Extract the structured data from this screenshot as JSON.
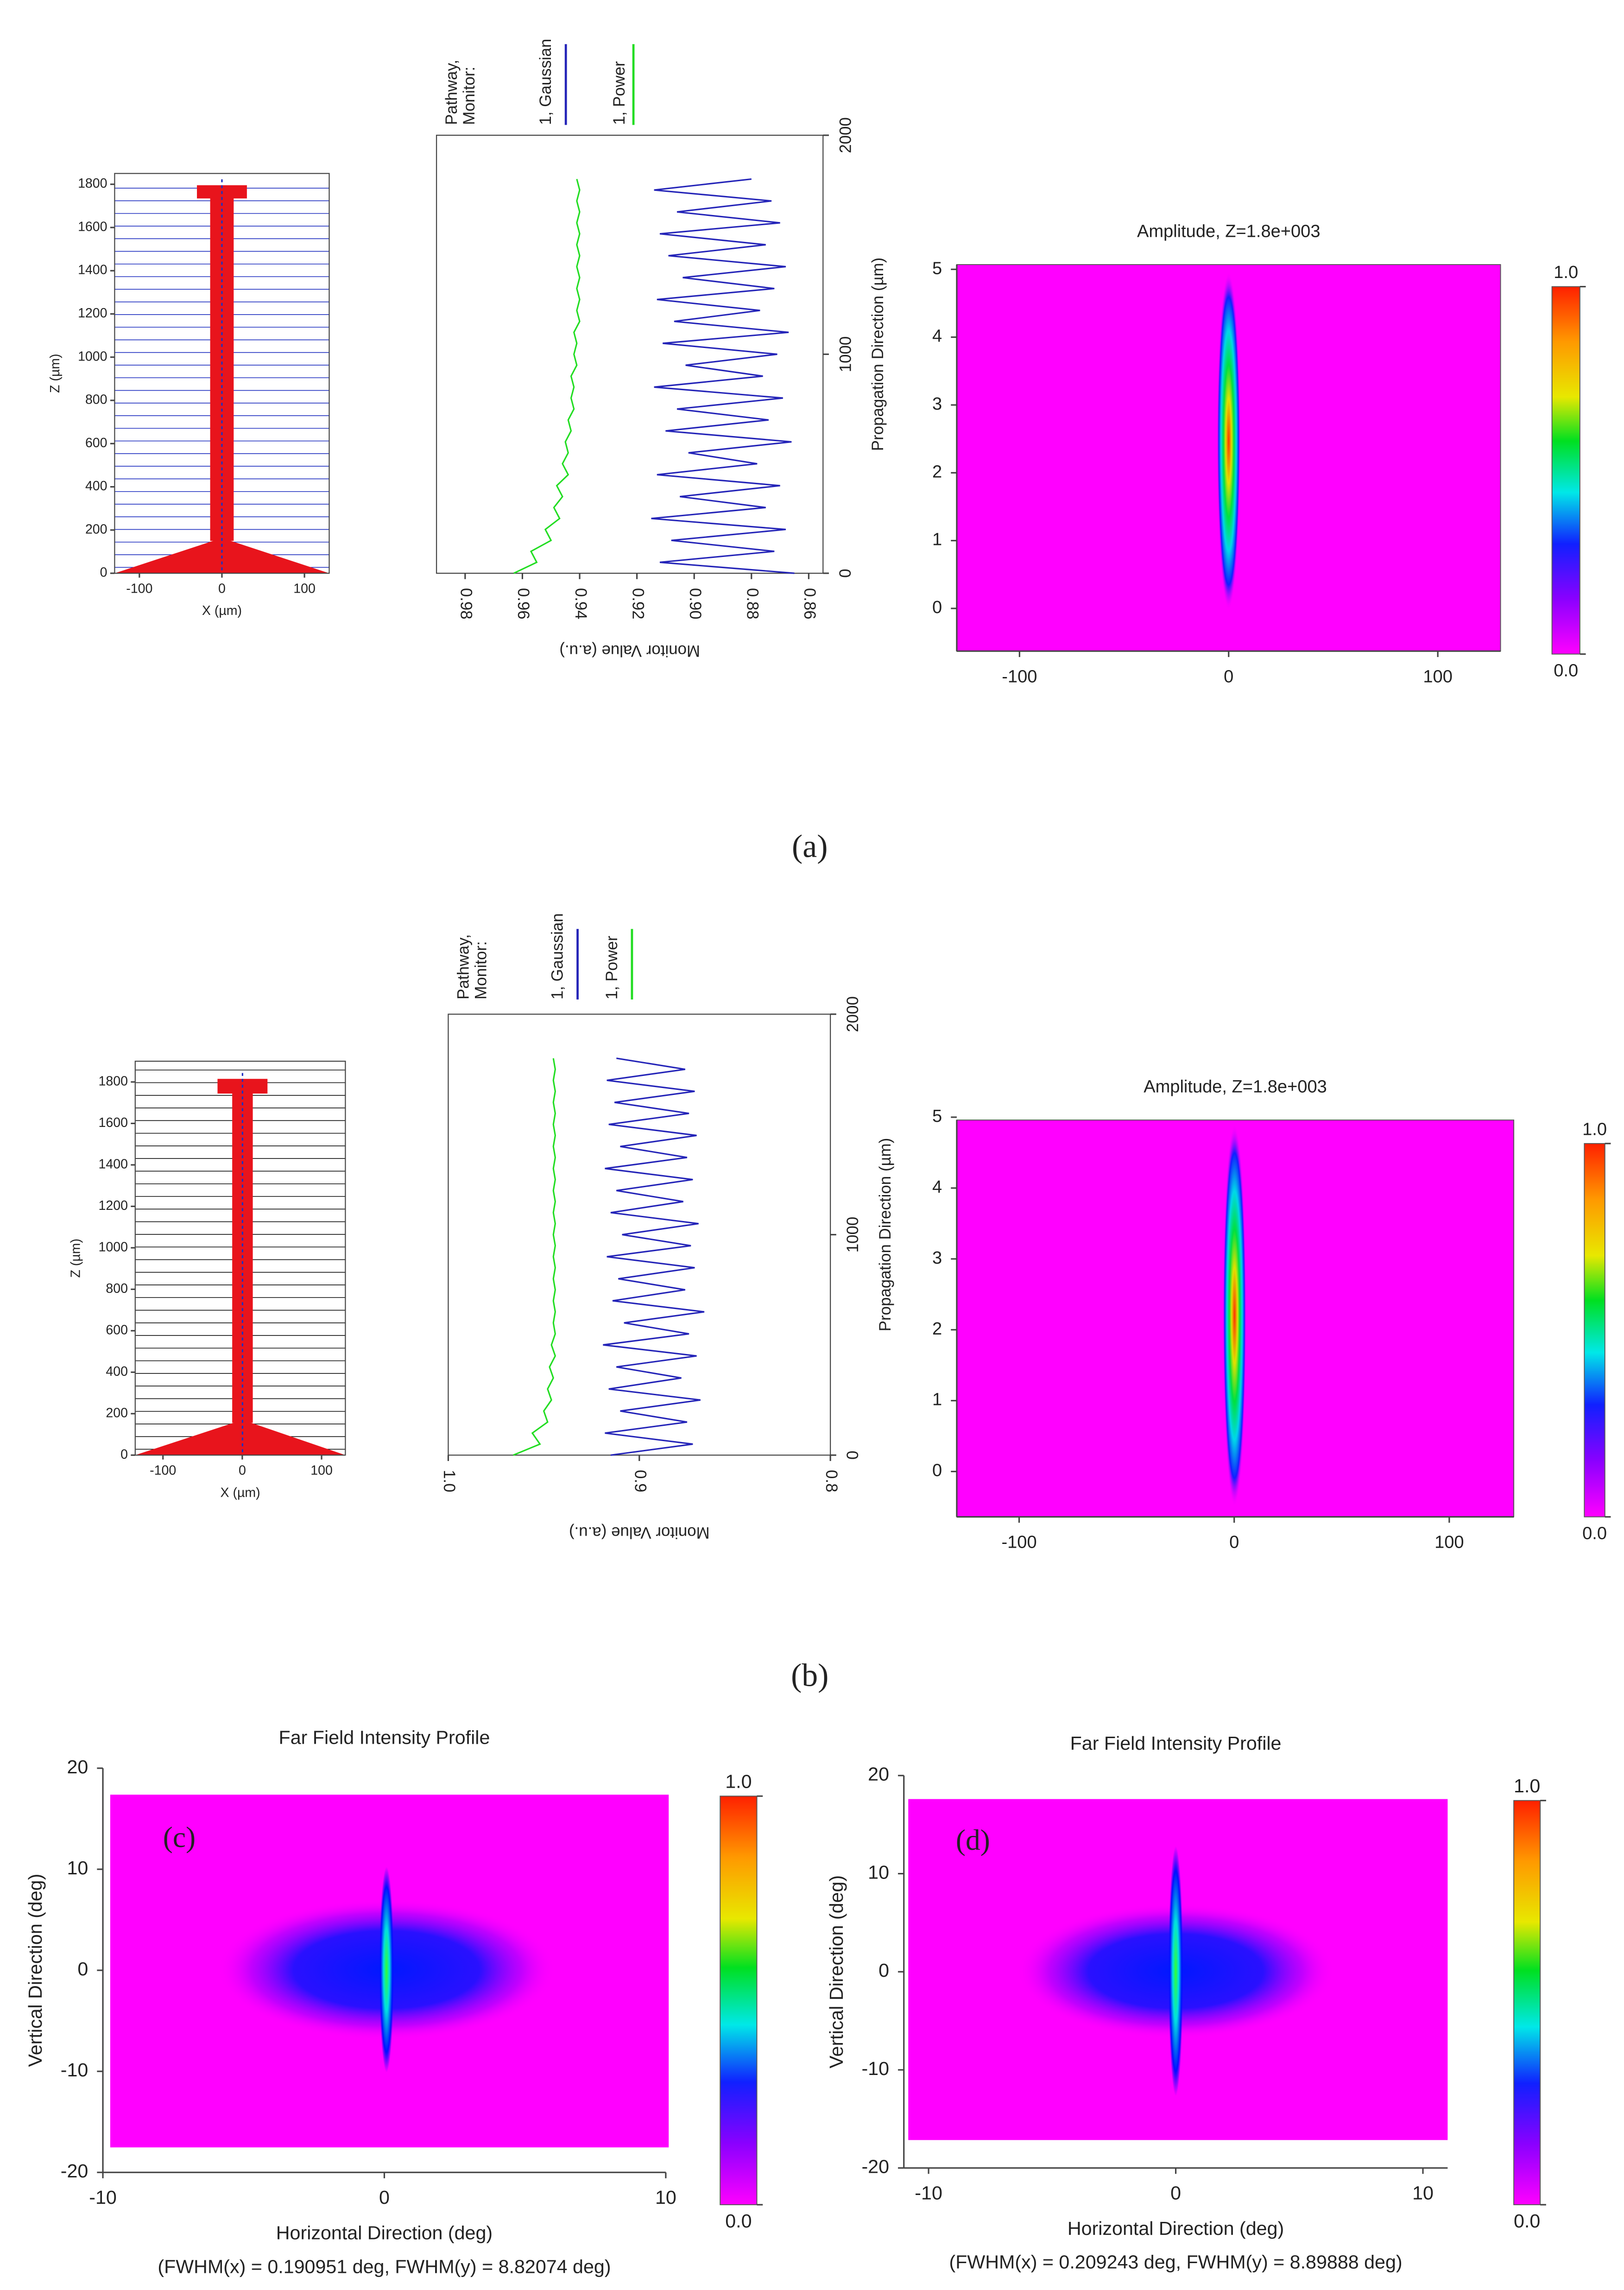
{
  "captions": [
    "(a)",
    "(b)"
  ],
  "chart_data": [
    {
      "type": "layout",
      "xlabel": "X (µm)",
      "ylabel": "Z (µm)",
      "xlim": [
        -130,
        130
      ],
      "ylim": [
        0,
        1850
      ],
      "xticks": [
        -100,
        0,
        100
      ],
      "yticks": [
        0,
        200,
        400,
        600,
        800,
        1000,
        1200,
        1400,
        1600,
        1800
      ]
    },
    {
      "type": "line",
      "legend_title": [
        "Pathway,",
        "Monitor:"
      ],
      "xlabel": "Monitor Value (a.u.)",
      "ylabel": "Propagation Direction (µm)",
      "xlim": [
        0.99,
        0.855
      ],
      "xticks": [
        0.98,
        0.96,
        0.94,
        0.92,
        {
          "value": 0.9,
          "label": "0.90"
        },
        0.88,
        0.86
      ],
      "ylim": [
        0,
        2000
      ],
      "yticks": [
        0,
        1000,
        2000
      ],
      "z": [
        0,
        50,
        100,
        150,
        200,
        250,
        300,
        350,
        400,
        450,
        500,
        550,
        600,
        650,
        700,
        750,
        800,
        850,
        900,
        950,
        1000,
        1050,
        1100,
        1150,
        1200,
        1250,
        1300,
        1350,
        1400,
        1450,
        1500,
        1550,
        1600,
        1650,
        1700,
        1750,
        1800
      ],
      "series": [
        {
          "name": "1, Gaussian",
          "color": "#2424b8",
          "values": [
            0.865,
            0.912,
            0.872,
            0.908,
            0.868,
            0.915,
            0.875,
            0.905,
            0.87,
            0.913,
            0.878,
            0.902,
            0.866,
            0.91,
            0.874,
            0.906,
            0.869,
            0.914,
            0.876,
            0.903,
            0.871,
            0.911,
            0.867,
            0.907,
            0.877,
            0.913,
            0.872,
            0.904,
            0.868,
            0.909,
            0.875,
            0.912,
            0.87,
            0.906,
            0.873,
            0.914,
            0.88
          ]
        },
        {
          "name": "1, Power",
          "color": "#22dd22",
          "values": [
            0.963,
            0.955,
            0.957,
            0.95,
            0.952,
            0.947,
            0.949,
            0.946,
            0.948,
            0.944,
            0.946,
            0.944,
            0.945,
            0.943,
            0.944,
            0.942,
            0.943,
            0.942,
            0.943,
            0.941,
            0.942,
            0.941,
            0.942,
            0.94,
            0.941,
            0.94,
            0.941,
            0.94,
            0.941,
            0.94,
            0.941,
            0.94,
            0.941,
            0.94,
            0.941,
            0.94,
            0.941
          ]
        }
      ]
    },
    {
      "type": "heatmap",
      "title": "Amplitude, Z=1.8e+003",
      "xlim": [
        -130,
        130
      ],
      "ylim": [
        -0.63,
        5.07
      ],
      "xticks": [
        -100,
        0,
        100
      ],
      "yticks": [
        0,
        1,
        2,
        3,
        4,
        5
      ],
      "colorbar_ticks": [
        {
          "value": 0,
          "label": "0.0"
        },
        {
          "value": 1,
          "label": "1.0"
        }
      ]
    },
    {
      "type": "layout",
      "xlabel": "X (µm)",
      "ylabel": "Z (µm)",
      "xlim": [
        -135,
        130
      ],
      "ylim": [
        0,
        1900
      ],
      "xticks": [
        -100,
        0,
        100
      ],
      "yticks": [
        0,
        200,
        400,
        600,
        800,
        1000,
        1200,
        1400,
        1600,
        1800
      ]
    },
    {
      "type": "line",
      "legend_title": [
        "Pathway,",
        "Monitor:"
      ],
      "xlabel": "Monitor Value (a.u.)",
      "ylabel": "Propagation Direction (µm)",
      "xlim": [
        1.0,
        0.8
      ],
      "xticks": [
        {
          "value": 1.0,
          "label": "1.0"
        },
        0.9,
        0.8
      ],
      "ylim": [
        0,
        2000
      ],
      "yticks": [
        0,
        1000,
        2000
      ],
      "z": [
        0,
        50,
        100,
        150,
        200,
        250,
        300,
        350,
        400,
        450,
        500,
        550,
        600,
        650,
        700,
        750,
        800,
        850,
        900,
        950,
        1000,
        1050,
        1100,
        1150,
        1200,
        1250,
        1300,
        1350,
        1400,
        1450,
        1500,
        1550,
        1600,
        1650,
        1700,
        1750,
        1800
      ],
      "series": [
        {
          "name": "1, Gaussian",
          "color": "#2424b8",
          "values": [
            0.915,
            0.872,
            0.918,
            0.875,
            0.91,
            0.868,
            0.916,
            0.878,
            0.912,
            0.87,
            0.919,
            0.874,
            0.908,
            0.866,
            0.914,
            0.876,
            0.911,
            0.871,
            0.917,
            0.873,
            0.909,
            0.869,
            0.915,
            0.877,
            0.912,
            0.872,
            0.918,
            0.875,
            0.91,
            0.87,
            0.916,
            0.874,
            0.913,
            0.871,
            0.917,
            0.876,
            0.912
          ]
        },
        {
          "name": "1, Power",
          "color": "#22dd22",
          "values": [
            0.966,
            0.952,
            0.956,
            0.948,
            0.95,
            0.946,
            0.948,
            0.945,
            0.947,
            0.944,
            0.946,
            0.944,
            0.945,
            0.944,
            0.945,
            0.944,
            0.945,
            0.944,
            0.945,
            0.944,
            0.945,
            0.944,
            0.945,
            0.944,
            0.945,
            0.944,
            0.945,
            0.944,
            0.945,
            0.944,
            0.945,
            0.944,
            0.945,
            0.944,
            0.945,
            0.944,
            0.945
          ]
        }
      ]
    },
    {
      "type": "heatmap",
      "title": "Amplitude, Z=1.8e+003",
      "xlim": [
        -129,
        130
      ],
      "ylim": [
        -0.64,
        4.96
      ],
      "xticks": [
        -100,
        0,
        100
      ],
      "yticks": [
        0,
        1,
        2,
        3,
        4,
        5
      ],
      "colorbar_ticks": [
        {
          "value": 0,
          "label": "0.0"
        },
        {
          "value": 1,
          "label": "1.0"
        }
      ]
    },
    {
      "type": "heatmap",
      "title": "Far Field Intensity Profile",
      "panel_label": "(c)",
      "xlabel": "Horizontal Direction (deg)",
      "ylabel": "Vertical Direction (deg)",
      "note": "(FWHM(x) = 0.190951 deg, FWHM(y) = 8.82074 deg)",
      "xlim": [
        -10,
        10
      ],
      "ylim": [
        -20,
        20
      ],
      "xticks": [
        -10,
        0,
        10
      ],
      "yticks": [
        -20,
        -10,
        0,
        10,
        20
      ],
      "colorbar_ticks": [
        {
          "value": 0,
          "label": "0.0"
        },
        {
          "value": 1,
          "label": "1.0"
        }
      ]
    },
    {
      "type": "heatmap",
      "title": "Far Field Intensity Profile",
      "panel_label": "(d)",
      "xlabel": "Horizontal Direction (deg)",
      "ylabel": "Vertical Direction (deg)",
      "note": "(FWHM(x) = 0.209243 deg, FWHM(y) = 8.89888 deg)",
      "xlim": [
        -11,
        11
      ],
      "ylim": [
        -20,
        20
      ],
      "xticks": [
        -10,
        0,
        10
      ],
      "yticks": [
        -20,
        -10,
        0,
        10,
        20
      ],
      "colorbar_ticks": [
        {
          "value": 0,
          "label": "0.0"
        },
        {
          "value": 1,
          "label": "1.0"
        }
      ]
    }
  ]
}
